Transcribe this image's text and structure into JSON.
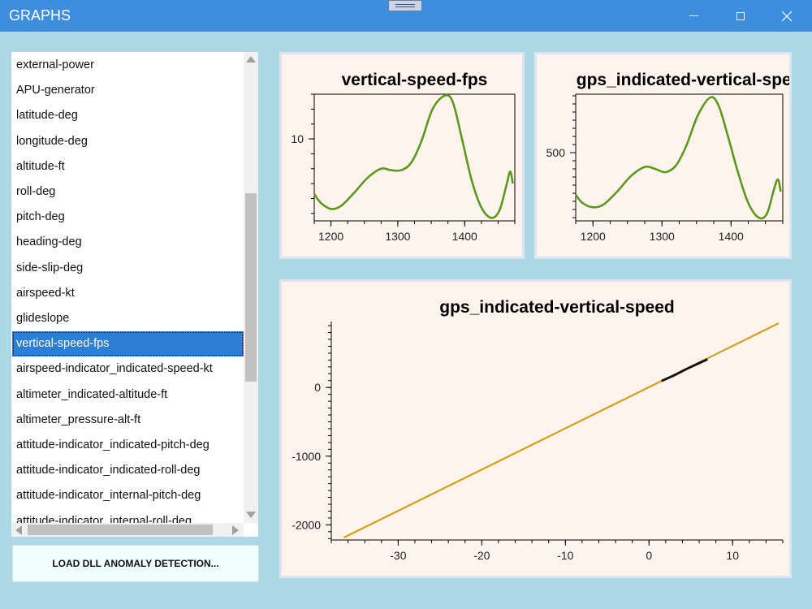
{
  "window": {
    "title": "GRAPHS"
  },
  "list": {
    "items": [
      "external-power",
      "APU-generator",
      "latitude-deg",
      "longitude-deg",
      "altitude-ft",
      "roll-deg",
      "pitch-deg",
      "heading-deg",
      "side-slip-deg",
      "airspeed-kt",
      "glideslope",
      "vertical-speed-fps",
      "airspeed-indicator_indicated-speed-kt",
      "altimeter_indicated-altitude-ft",
      "altimeter_pressure-alt-ft",
      "attitude-indicator_indicated-pitch-deg",
      "attitude-indicator_indicated-roll-deg",
      "attitude-indicator_internal-pitch-deg",
      "attitude-indicator_internal-roll-deg"
    ],
    "selected": "vertical-speed-fps"
  },
  "load_button": {
    "label": "LOAD DLL ANOMALY DETECTION..."
  },
  "colors": {
    "line_series": "#5a9a1a",
    "regression_line": "#d4a017",
    "points": "#111111",
    "panel_bg": "#fff3ee",
    "selected_bg": "#2c7fd3"
  },
  "chart_data": [
    {
      "type": "line",
      "title": "vertical-speed-fps",
      "xlim": [
        1175,
        1475
      ],
      "ylim": [
        4.5,
        13
      ],
      "xticks": [
        1200,
        1300,
        1400
      ],
      "yticks": [
        10
      ],
      "series": [
        {
          "x": [
            1175,
            1185,
            1200,
            1215,
            1235,
            1255,
            1275,
            1290,
            1305,
            1320,
            1335,
            1352,
            1370,
            1382,
            1395,
            1410,
            1425,
            1440,
            1452,
            1462,
            1468,
            1472
          ],
          "y": [
            6.3,
            5.7,
            5.3,
            5.5,
            6.4,
            7.4,
            8.0,
            7.9,
            7.9,
            8.4,
            9.8,
            12.0,
            12.9,
            12.5,
            10.2,
            7.3,
            5.4,
            4.7,
            5.2,
            6.8,
            7.8,
            7.0
          ]
        }
      ]
    },
    {
      "type": "line",
      "title": "gps_indicated-vertical-speed",
      "xlim": [
        1175,
        1475
      ],
      "ylim": [
        290,
        680
      ],
      "xticks": [
        1200,
        1300,
        1400
      ],
      "yticks": [
        500
      ],
      "series": [
        {
          "x": [
            1175,
            1185,
            1200,
            1215,
            1235,
            1255,
            1275,
            1290,
            1305,
            1320,
            1335,
            1352,
            1370,
            1382,
            1395,
            1410,
            1425,
            1440,
            1452,
            1462,
            1468,
            1472
          ],
          "y": [
            370,
            345,
            332,
            340,
            380,
            428,
            456,
            450,
            440,
            460,
            520,
            615,
            670,
            645,
            555,
            440,
            345,
            300,
            312,
            385,
            418,
            380
          ]
        }
      ]
    },
    {
      "type": "scatter",
      "title": "gps_indicated-vertical-speed",
      "xlim": [
        -38,
        16
      ],
      "ylim": [
        -2220,
        960
      ],
      "xticks": [
        -30,
        -20,
        -10,
        0,
        10
      ],
      "yticks": [
        0,
        -1000,
        -2000
      ],
      "regression": {
        "x": [
          -36.5,
          15.5
        ],
        "y": [
          -2185,
          935
        ]
      },
      "points": {
        "x": [
          1.5,
          3,
          4.5,
          6,
          7
        ],
        "y": [
          95,
          175,
          270,
          355,
          410
        ]
      }
    }
  ]
}
